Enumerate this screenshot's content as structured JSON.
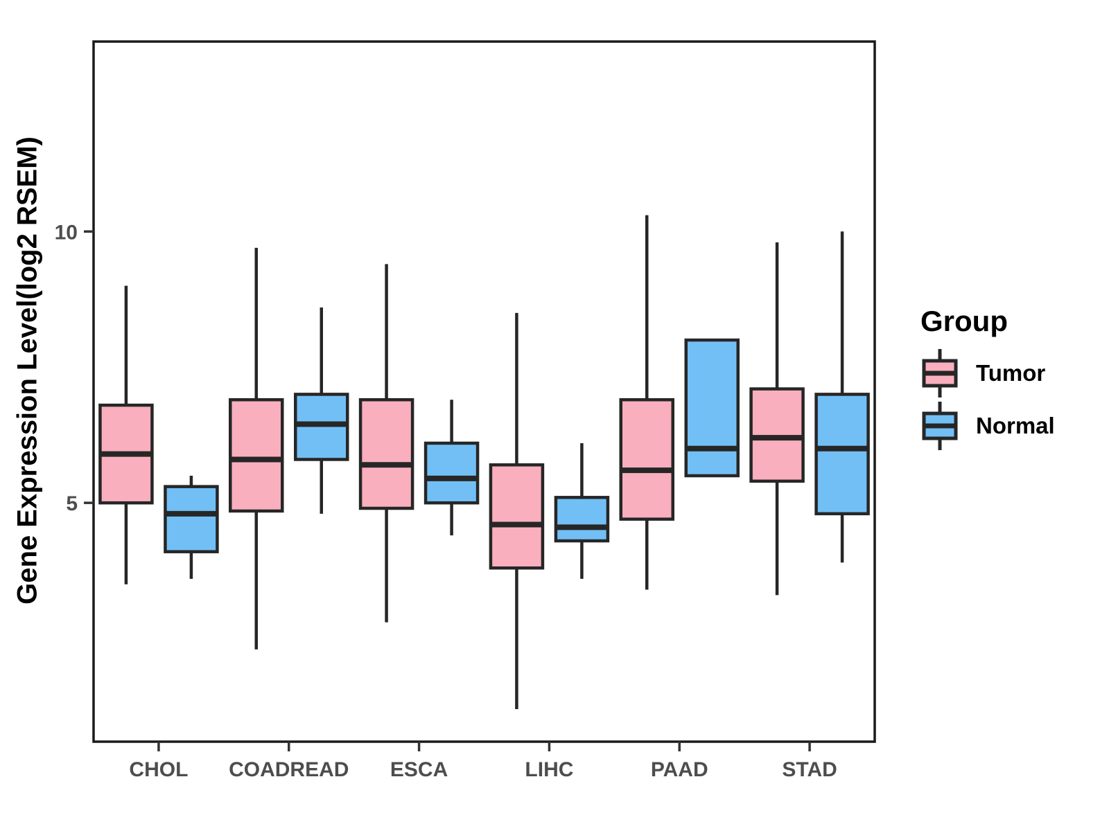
{
  "legend": {
    "title": "Group",
    "items": [
      {
        "label": "Tumor",
        "color": "#FAAFBE"
      },
      {
        "label": "Normal",
        "color": "#72BFF5"
      }
    ]
  },
  "chart_data": {
    "type": "boxplot",
    "title": "",
    "xlabel": "",
    "ylabel": "Gene Expression Level(log2 RSEM)",
    "categories": [
      "CHOL",
      "COADREAD",
      "ESCA",
      "LIHC",
      "PAAD",
      "STAD"
    ],
    "groups": [
      "Tumor",
      "Normal"
    ],
    "colors": {
      "Tumor": "#FAAFBE",
      "Normal": "#72BFF5",
      "box_border": "#262626",
      "axis_frame": "#1a1a1a",
      "tick": "#333333"
    },
    "ylim": [
      0.6,
      13.5
    ],
    "yticks": [
      {
        "value": 10,
        "label": "10"
      },
      {
        "value": 5,
        "label": "5"
      }
    ],
    "grid": false,
    "legend_position": "right",
    "series": [
      {
        "name": "Tumor",
        "boxes": [
          {
            "category": "CHOL",
            "whisker_low": 3.5,
            "q1": 5.0,
            "median": 5.9,
            "q3": 6.8,
            "whisker_high": 9.0
          },
          {
            "category": "COADREAD",
            "whisker_low": 2.3,
            "q1": 4.85,
            "median": 5.8,
            "q3": 6.9,
            "whisker_high": 9.7
          },
          {
            "category": "ESCA",
            "whisker_low": 2.8,
            "q1": 4.9,
            "median": 5.7,
            "q3": 6.9,
            "whisker_high": 9.4
          },
          {
            "category": "LIHC",
            "whisker_low": 1.2,
            "q1": 3.8,
            "median": 4.6,
            "q3": 5.7,
            "whisker_high": 8.5
          },
          {
            "category": "PAAD",
            "whisker_low": 3.4,
            "q1": 4.7,
            "median": 5.6,
            "q3": 6.9,
            "whisker_high": 10.3
          },
          {
            "category": "STAD",
            "whisker_low": 3.3,
            "q1": 5.4,
            "median": 6.2,
            "q3": 7.1,
            "whisker_high": 9.8
          }
        ]
      },
      {
        "name": "Normal",
        "boxes": [
          {
            "category": "CHOL",
            "whisker_low": 3.6,
            "q1": 4.1,
            "median": 4.8,
            "q3": 5.3,
            "whisker_high": 5.5
          },
          {
            "category": "COADREAD",
            "whisker_low": 4.8,
            "q1": 5.8,
            "median": 6.45,
            "q3": 7.0,
            "whisker_high": 8.6
          },
          {
            "category": "ESCA",
            "whisker_low": 4.4,
            "q1": 5.0,
            "median": 5.45,
            "q3": 6.1,
            "whisker_high": 6.9
          },
          {
            "category": "LIHC",
            "whisker_low": 3.6,
            "q1": 4.3,
            "median": 4.55,
            "q3": 5.1,
            "whisker_high": 6.1
          },
          {
            "category": "PAAD",
            "whisker_low": 5.5,
            "q1": 5.5,
            "median": 6.0,
            "q3": 8.0,
            "whisker_high": 8.0
          },
          {
            "category": "STAD",
            "whisker_low": 3.9,
            "q1": 4.8,
            "median": 6.0,
            "q3": 7.0,
            "whisker_high": 10.0
          }
        ]
      }
    ]
  }
}
